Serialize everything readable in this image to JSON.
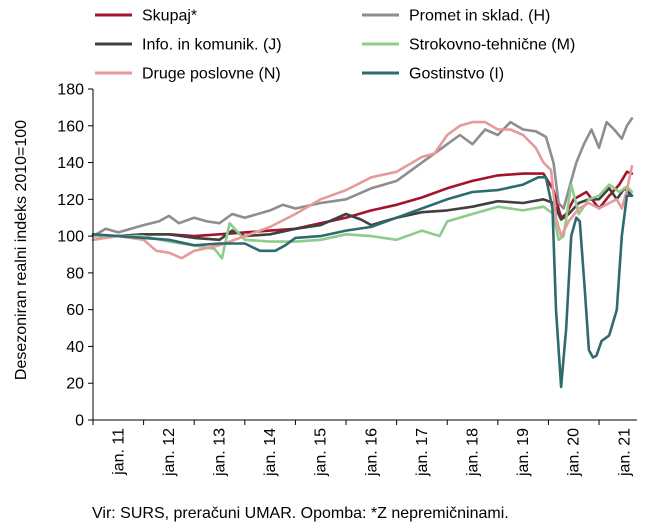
{
  "chart_data": {
    "type": "line",
    "ylabel": "Desezoniran realni indeks 2010=100",
    "ylim": [
      0,
      180
    ],
    "yticks": [
      0,
      20,
      40,
      60,
      80,
      100,
      120,
      140,
      160,
      180
    ],
    "xlim": [
      2011,
      2021.75
    ],
    "xticks": [
      {
        "label": "jan. 11",
        "x": 2011
      },
      {
        "label": "jan. 12",
        "x": 2012
      },
      {
        "label": "jan. 13",
        "x": 2013
      },
      {
        "label": "jan. 14",
        "x": 2014
      },
      {
        "label": "jan. 15",
        "x": 2015
      },
      {
        "label": "jan. 16",
        "x": 2016
      },
      {
        "label": "jan. 17",
        "x": 2017
      },
      {
        "label": "jan. 18",
        "x": 2018
      },
      {
        "label": "jan. 19",
        "x": 2019
      },
      {
        "label": "jan. 20",
        "x": 2020
      },
      {
        "label": "jan. 21",
        "x": 2021
      }
    ],
    "grid": false,
    "legend_placement": "top",
    "series": [
      {
        "name": "Skupaj*",
        "color": "#a3142c",
        "points": [
          [
            2011,
            100
          ],
          [
            2011.5,
            100
          ],
          [
            2012,
            101
          ],
          [
            2012.5,
            101
          ],
          [
            2013,
            100
          ],
          [
            2013.5,
            101
          ],
          [
            2014,
            102
          ],
          [
            2014.5,
            103
          ],
          [
            2015,
            104
          ],
          [
            2015.5,
            107
          ],
          [
            2016,
            110
          ],
          [
            2016.5,
            114
          ],
          [
            2017,
            117
          ],
          [
            2017.5,
            121
          ],
          [
            2018,
            126
          ],
          [
            2018.5,
            130
          ],
          [
            2019,
            133
          ],
          [
            2019.5,
            134
          ],
          [
            2019.9,
            134
          ],
          [
            2020.1,
            125
          ],
          [
            2020.25,
            110
          ],
          [
            2020.35,
            112
          ],
          [
            2020.5,
            120
          ],
          [
            2020.75,
            124
          ],
          [
            2021,
            115
          ],
          [
            2021.2,
            122
          ],
          [
            2021.4,
            128
          ],
          [
            2021.55,
            135
          ],
          [
            2021.65,
            134
          ]
        ]
      },
      {
        "name": "Promet in sklad. (H)",
        "color": "#8e8e8e",
        "points": [
          [
            2011,
            100
          ],
          [
            2011.25,
            104
          ],
          [
            2011.5,
            102
          ],
          [
            2012,
            106
          ],
          [
            2012.3,
            108
          ],
          [
            2012.5,
            111
          ],
          [
            2012.7,
            107
          ],
          [
            2013,
            110
          ],
          [
            2013.25,
            108
          ],
          [
            2013.5,
            107
          ],
          [
            2013.75,
            112
          ],
          [
            2014,
            110
          ],
          [
            2014.5,
            114
          ],
          [
            2014.75,
            117
          ],
          [
            2015,
            115
          ],
          [
            2015.5,
            118
          ],
          [
            2016,
            120
          ],
          [
            2016.5,
            126
          ],
          [
            2017,
            130
          ],
          [
            2017.5,
            140
          ],
          [
            2017.75,
            145
          ],
          [
            2018,
            150
          ],
          [
            2018.25,
            155
          ],
          [
            2018.5,
            150
          ],
          [
            2018.75,
            158
          ],
          [
            2019,
            155
          ],
          [
            2019.25,
            162
          ],
          [
            2019.5,
            158
          ],
          [
            2019.75,
            157
          ],
          [
            2019.95,
            154
          ],
          [
            2020.1,
            140
          ],
          [
            2020.2,
            118
          ],
          [
            2020.3,
            115
          ],
          [
            2020.45,
            130
          ],
          [
            2020.55,
            140
          ],
          [
            2020.7,
            150
          ],
          [
            2020.85,
            158
          ],
          [
            2021,
            148
          ],
          [
            2021.15,
            162
          ],
          [
            2021.3,
            158
          ],
          [
            2021.45,
            153
          ],
          [
            2021.55,
            160
          ],
          [
            2021.65,
            164
          ]
        ]
      },
      {
        "name": "Info. in komunik. (J)",
        "color": "#404040",
        "points": [
          [
            2011,
            100
          ],
          [
            2011.5,
            100
          ],
          [
            2012,
            101
          ],
          [
            2012.5,
            101
          ],
          [
            2013,
            99
          ],
          [
            2013.5,
            98
          ],
          [
            2013.75,
            103
          ],
          [
            2014,
            100
          ],
          [
            2014.5,
            101
          ],
          [
            2015,
            104
          ],
          [
            2015.5,
            106
          ],
          [
            2016,
            112
          ],
          [
            2016.3,
            109
          ],
          [
            2016.5,
            106
          ],
          [
            2017,
            110
          ],
          [
            2017.5,
            113
          ],
          [
            2018,
            114
          ],
          [
            2018.5,
            116
          ],
          [
            2019,
            119
          ],
          [
            2019.5,
            118
          ],
          [
            2019.9,
            120
          ],
          [
            2020.1,
            118
          ],
          [
            2020.25,
            109
          ],
          [
            2020.4,
            112
          ],
          [
            2020.6,
            118
          ],
          [
            2020.8,
            120
          ],
          [
            2021,
            120
          ],
          [
            2021.2,
            126
          ],
          [
            2021.35,
            120
          ],
          [
            2021.5,
            126
          ],
          [
            2021.65,
            122
          ]
        ]
      },
      {
        "name": "Strokovno-tehnične (M)",
        "color": "#8ecc8c",
        "points": [
          [
            2011,
            100
          ],
          [
            2011.5,
            100
          ],
          [
            2012,
            100
          ],
          [
            2012.5,
            97
          ],
          [
            2013,
            95
          ],
          [
            2013.4,
            93
          ],
          [
            2013.55,
            88
          ],
          [
            2013.7,
            107
          ],
          [
            2014,
            98
          ],
          [
            2014.5,
            97
          ],
          [
            2015,
            97
          ],
          [
            2015.5,
            98
          ],
          [
            2016,
            101
          ],
          [
            2016.5,
            100
          ],
          [
            2017,
            98
          ],
          [
            2017.5,
            103
          ],
          [
            2017.85,
            100
          ],
          [
            2018,
            108
          ],
          [
            2018.5,
            112
          ],
          [
            2019,
            116
          ],
          [
            2019.5,
            114
          ],
          [
            2019.9,
            116
          ],
          [
            2020.1,
            112
          ],
          [
            2020.2,
            98
          ],
          [
            2020.3,
            100
          ],
          [
            2020.45,
            128
          ],
          [
            2020.6,
            112
          ],
          [
            2020.8,
            120
          ],
          [
            2021,
            122
          ],
          [
            2021.2,
            128
          ],
          [
            2021.4,
            124
          ],
          [
            2021.55,
            127
          ],
          [
            2021.65,
            124
          ]
        ]
      },
      {
        "name": "Druge poslovne (N)",
        "color": "#e69a9a",
        "points": [
          [
            2011,
            98
          ],
          [
            2011.5,
            100
          ],
          [
            2012,
            98
          ],
          [
            2012.25,
            92
          ],
          [
            2012.5,
            91
          ],
          [
            2012.75,
            88
          ],
          [
            2013,
            92
          ],
          [
            2013.5,
            95
          ],
          [
            2014,
            100
          ],
          [
            2014.5,
            105
          ],
          [
            2015,
            112
          ],
          [
            2015.5,
            120
          ],
          [
            2016,
            125
          ],
          [
            2016.5,
            132
          ],
          [
            2017,
            135
          ],
          [
            2017.5,
            143
          ],
          [
            2017.75,
            145
          ],
          [
            2018,
            155
          ],
          [
            2018.25,
            160
          ],
          [
            2018.5,
            162
          ],
          [
            2018.75,
            162
          ],
          [
            2019,
            158
          ],
          [
            2019.25,
            158
          ],
          [
            2019.5,
            155
          ],
          [
            2019.75,
            148
          ],
          [
            2019.9,
            140
          ],
          [
            2020.05,
            136
          ],
          [
            2020.15,
            110
          ],
          [
            2020.25,
            100
          ],
          [
            2020.4,
            108
          ],
          [
            2020.6,
            115
          ],
          [
            2020.8,
            118
          ],
          [
            2021,
            115
          ],
          [
            2021.2,
            118
          ],
          [
            2021.35,
            120
          ],
          [
            2021.45,
            115
          ],
          [
            2021.55,
            125
          ],
          [
            2021.65,
            138
          ]
        ]
      },
      {
        "name": "Gostinstvo (I)",
        "color": "#2e6b6f",
        "points": [
          [
            2011,
            101
          ],
          [
            2011.5,
            100
          ],
          [
            2012,
            99
          ],
          [
            2012.5,
            98
          ],
          [
            2013,
            95
          ],
          [
            2013.5,
            96
          ],
          [
            2014,
            96
          ],
          [
            2014.3,
            92
          ],
          [
            2014.6,
            92
          ],
          [
            2014.8,
            95
          ],
          [
            2015,
            99
          ],
          [
            2015.5,
            100
          ],
          [
            2016,
            103
          ],
          [
            2016.5,
            105
          ],
          [
            2017,
            110
          ],
          [
            2017.5,
            115
          ],
          [
            2018,
            120
          ],
          [
            2018.5,
            124
          ],
          [
            2019,
            125
          ],
          [
            2019.5,
            128
          ],
          [
            2019.8,
            132
          ],
          [
            2019.95,
            132
          ],
          [
            2020.08,
            115
          ],
          [
            2020.15,
            60
          ],
          [
            2020.25,
            18
          ],
          [
            2020.35,
            50
          ],
          [
            2020.45,
            100
          ],
          [
            2020.55,
            110
          ],
          [
            2020.62,
            108
          ],
          [
            2020.72,
            70
          ],
          [
            2020.8,
            38
          ],
          [
            2020.88,
            34
          ],
          [
            2020.95,
            35
          ],
          [
            2021.05,
            43
          ],
          [
            2021.2,
            46
          ],
          [
            2021.35,
            60
          ],
          [
            2021.45,
            100
          ],
          [
            2021.55,
            122
          ],
          [
            2021.65,
            122
          ]
        ]
      }
    ]
  },
  "footer": {
    "source": "Vir: SURS, preračuni UMAR. Opomba: *Z nepremičninami."
  }
}
